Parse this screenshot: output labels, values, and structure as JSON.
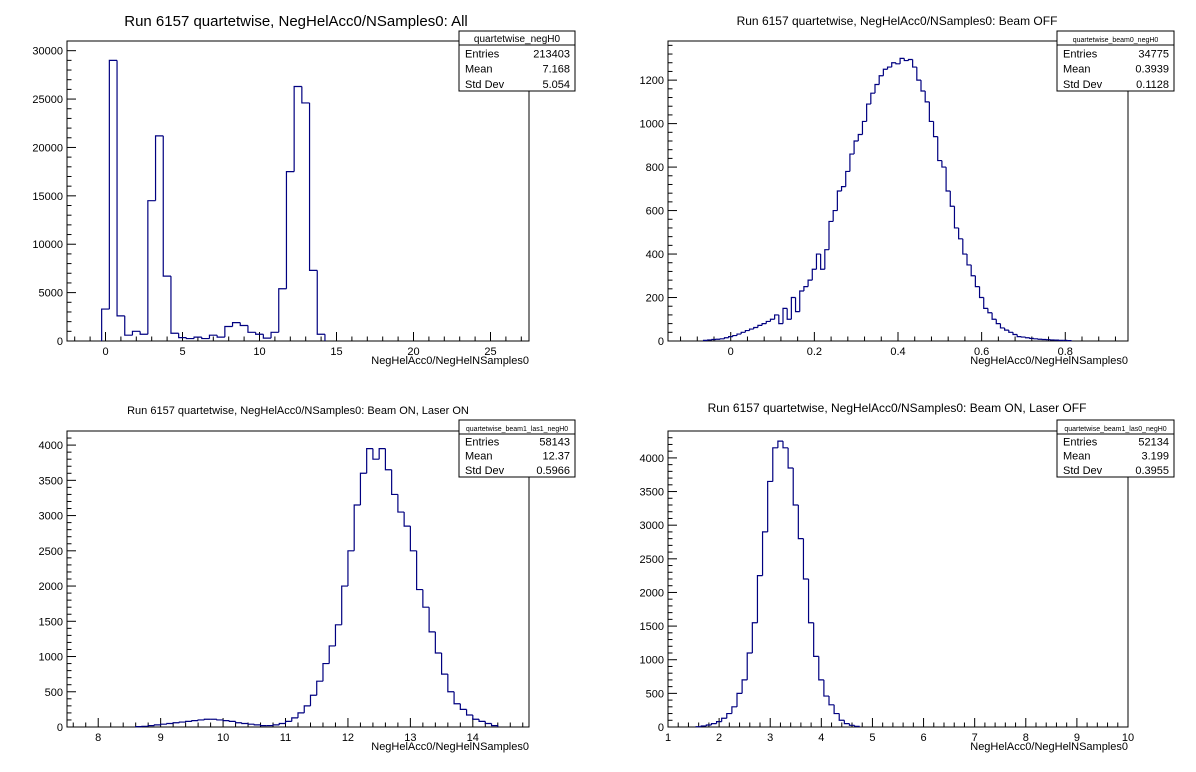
{
  "chart_data": [
    {
      "type": "histogram",
      "title": "Run 6157 quartetwise, NegHelAcc0/NSamples0: All",
      "xlabel": "NegHelAcc0/NegHelNSamples0",
      "ylabel": "",
      "xlim": [
        -2.5,
        27.5
      ],
      "ylim": [
        0,
        31000
      ],
      "xticks": [
        0,
        5,
        10,
        15,
        20,
        25
      ],
      "yticks": [
        0,
        5000,
        10000,
        15000,
        20000,
        25000,
        30000
      ],
      "tick_labels_x": [
        "0",
        "5",
        "10",
        "15",
        "20",
        "25"
      ],
      "tick_labels_y": [
        "0",
        "5000",
        "10000",
        "15000",
        "20000",
        "25000",
        "30000"
      ],
      "grid": false,
      "line_color": "#000080",
      "stats": {
        "name": "quartetwise_negH0",
        "rows": [
          {
            "label": "Entries",
            "value": "213403"
          },
          {
            "label": "Mean",
            "value": "7.168"
          },
          {
            "label": "Std Dev",
            "value": "5.054"
          }
        ]
      },
      "bins": {
        "x": [
          0.0,
          0.5,
          1.0,
          1.5,
          2.0,
          2.5,
          3.0,
          3.5,
          4.0,
          4.5,
          5.0,
          5.5,
          6.0,
          6.5,
          7.0,
          7.5,
          8.0,
          8.5,
          9.0,
          9.5,
          10.0,
          10.5,
          11.0,
          11.5,
          12.0,
          12.5,
          13.0,
          13.5,
          14.0
        ],
        "counts": [
          3300,
          29000,
          2600,
          600,
          1000,
          700,
          14500,
          21200,
          6700,
          800,
          350,
          250,
          400,
          250,
          600,
          400,
          1500,
          1900,
          1600,
          900,
          700,
          300,
          900,
          5400,
          17500,
          26300,
          24600,
          7300,
          700
        ]
      }
    },
    {
      "type": "histogram",
      "title": "Run 6157 quartetwise, NegHelAcc0/NSamples0: Beam OFF",
      "xlabel": "NegHelAcc0/NegHelNSamples0",
      "ylabel": "",
      "xlim": [
        -0.15,
        0.95
      ],
      "ylim": [
        0,
        1380
      ],
      "xticks": [
        0,
        0.2,
        0.4,
        0.6,
        0.8
      ],
      "yticks": [
        0,
        200,
        400,
        600,
        800,
        1000,
        1200
      ],
      "tick_labels_x": [
        "0",
        "0.2",
        "0.4",
        "0.6",
        "0.8"
      ],
      "tick_labels_y": [
        "0",
        "200",
        "400",
        "600",
        "800",
        "1000",
        "1200"
      ],
      "grid": false,
      "line_color": "#000080",
      "stats": {
        "name": "quartetwise_beam0_negH0",
        "rows": [
          {
            "label": "Entries",
            "value": "34775"
          },
          {
            "label": "Mean",
            "value": "0.3939"
          },
          {
            "label": "Std Dev",
            "value": "0.1128"
          }
        ]
      },
      "bins": {
        "x": [
          -0.06,
          -0.05,
          -0.04,
          -0.03,
          -0.02,
          -0.01,
          0.0,
          0.01,
          0.02,
          0.03,
          0.04,
          0.05,
          0.06,
          0.07,
          0.08,
          0.09,
          0.1,
          0.11,
          0.12,
          0.13,
          0.14,
          0.15,
          0.16,
          0.17,
          0.18,
          0.19,
          0.2,
          0.21,
          0.22,
          0.23,
          0.24,
          0.25,
          0.26,
          0.27,
          0.28,
          0.29,
          0.3,
          0.31,
          0.32,
          0.33,
          0.34,
          0.35,
          0.36,
          0.37,
          0.38,
          0.39,
          0.4,
          0.41,
          0.42,
          0.43,
          0.44,
          0.45,
          0.46,
          0.47,
          0.48,
          0.49,
          0.5,
          0.51,
          0.52,
          0.53,
          0.54,
          0.55,
          0.56,
          0.57,
          0.58,
          0.59,
          0.6,
          0.61,
          0.62,
          0.63,
          0.64,
          0.65,
          0.66,
          0.67,
          0.68,
          0.69,
          0.7,
          0.71,
          0.72,
          0.73,
          0.74,
          0.75,
          0.76,
          0.77,
          0.78,
          0.79,
          0.8,
          0.81
        ],
        "counts": [
          3,
          5,
          7,
          8,
          10,
          15,
          20,
          25,
          32,
          40,
          48,
          55,
          62,
          72,
          80,
          90,
          100,
          120,
          80,
          150,
          100,
          200,
          135,
          230,
          250,
          280,
          330,
          400,
          330,
          420,
          550,
          600,
          690,
          710,
          780,
          860,
          920,
          950,
          1010,
          1090,
          1140,
          1180,
          1220,
          1250,
          1260,
          1280,
          1275,
          1300,
          1290,
          1295,
          1260,
          1200,
          1150,
          1100,
          1010,
          940,
          830,
          800,
          690,
          620,
          520,
          470,
          400,
          350,
          300,
          250,
          200,
          150,
          130,
          100,
          80,
          60,
          50,
          40,
          30,
          20,
          18,
          15,
          12,
          10,
          8,
          7,
          6,
          5,
          4,
          3,
          3,
          2
        ]
      }
    },
    {
      "type": "histogram",
      "title": "Run 6157 quartetwise, NegHelAcc0/NSamples0: Beam ON, Laser ON",
      "xlabel": "NegHelAcc0/NegHelNSamples0",
      "ylabel": "",
      "xlim": [
        7.5,
        14.9
      ],
      "ylim": [
        0,
        4200
      ],
      "xticks": [
        8,
        9,
        10,
        11,
        12,
        13,
        14
      ],
      "yticks": [
        0,
        500,
        1000,
        1500,
        2000,
        2500,
        3000,
        3500,
        4000
      ],
      "tick_labels_x": [
        "8",
        "9",
        "10",
        "11",
        "12",
        "13",
        "14"
      ],
      "tick_labels_y": [
        "0",
        "500",
        "1000",
        "1500",
        "2000",
        "2500",
        "3000",
        "3500",
        "4000"
      ],
      "grid": false,
      "line_color": "#000080",
      "stats": {
        "name": "quartetwise_beam1_las1_negH0",
        "rows": [
          {
            "label": "Entries",
            "value": "58143"
          },
          {
            "label": "Mean",
            "value": "12.37"
          },
          {
            "label": "Std Dev",
            "value": "0.5966"
          }
        ]
      },
      "bins": {
        "x": [
          8.65,
          8.75,
          8.85,
          8.95,
          9.05,
          9.15,
          9.25,
          9.35,
          9.45,
          9.55,
          9.65,
          9.75,
          9.85,
          9.95,
          10.05,
          10.15,
          10.25,
          10.35,
          10.45,
          10.55,
          10.65,
          10.75,
          10.85,
          10.95,
          11.05,
          11.15,
          11.25,
          11.35,
          11.45,
          11.55,
          11.65,
          11.75,
          11.85,
          11.95,
          12.05,
          12.15,
          12.25,
          12.35,
          12.45,
          12.55,
          12.65,
          12.75,
          12.85,
          12.95,
          13.05,
          13.15,
          13.25,
          13.35,
          13.45,
          13.55,
          13.65,
          13.75,
          13.85,
          13.95,
          14.05,
          14.15,
          14.25,
          14.35
        ],
        "counts": [
          5,
          10,
          20,
          30,
          40,
          50,
          60,
          70,
          80,
          90,
          100,
          110,
          110,
          100,
          90,
          80,
          60,
          50,
          40,
          30,
          20,
          20,
          30,
          50,
          80,
          130,
          200,
          300,
          450,
          650,
          900,
          1150,
          1450,
          2000,
          2500,
          3150,
          3600,
          3950,
          3800,
          3950,
          3650,
          3300,
          3050,
          2850,
          2500,
          1950,
          1700,
          1350,
          1050,
          750,
          500,
          330,
          250,
          170,
          110,
          80,
          50,
          20
        ]
      }
    },
    {
      "type": "histogram",
      "title": "Run 6157 quartetwise, NegHelAcc0/NSamples0: Beam ON, Laser OFF",
      "xlabel": "NegHelAcc0/NegHelNSamples0",
      "ylabel": "",
      "xlim": [
        1,
        10
      ],
      "ylim": [
        0,
        4400
      ],
      "xticks": [
        1,
        2,
        3,
        4,
        5,
        6,
        7,
        8,
        9,
        10
      ],
      "yticks": [
        0,
        500,
        1000,
        1500,
        2000,
        2500,
        3000,
        3500,
        4000
      ],
      "tick_labels_x": [
        "1",
        "2",
        "3",
        "4",
        "5",
        "6",
        "7",
        "8",
        "9",
        "10"
      ],
      "tick_labels_y": [
        "0",
        "500",
        "1000",
        "1500",
        "2000",
        "2500",
        "3000",
        "3500",
        "4000"
      ],
      "grid": false,
      "line_color": "#000080",
      "stats": {
        "name": "quartetwise_beam1_las0_negH0",
        "rows": [
          {
            "label": "Entries",
            "value": "52134"
          },
          {
            "label": "Mean",
            "value": "3.199"
          },
          {
            "label": "Std Dev",
            "value": "0.3955"
          }
        ]
      },
      "bins": {
        "x": [
          1.6,
          1.7,
          1.8,
          1.9,
          2.0,
          2.1,
          2.2,
          2.3,
          2.4,
          2.5,
          2.6,
          2.7,
          2.8,
          2.9,
          3.0,
          3.1,
          3.2,
          3.3,
          3.4,
          3.5,
          3.6,
          3.7,
          3.8,
          3.9,
          4.0,
          4.1,
          4.2,
          4.3,
          4.4,
          4.5,
          4.6,
          4.7
        ],
        "counts": [
          5,
          15,
          30,
          50,
          80,
          130,
          200,
          300,
          500,
          700,
          1100,
          1550,
          2250,
          2900,
          3650,
          4150,
          4250,
          4150,
          3850,
          3300,
          2800,
          2200,
          1550,
          1050,
          700,
          460,
          330,
          200,
          100,
          50,
          25,
          10
        ]
      }
    }
  ]
}
